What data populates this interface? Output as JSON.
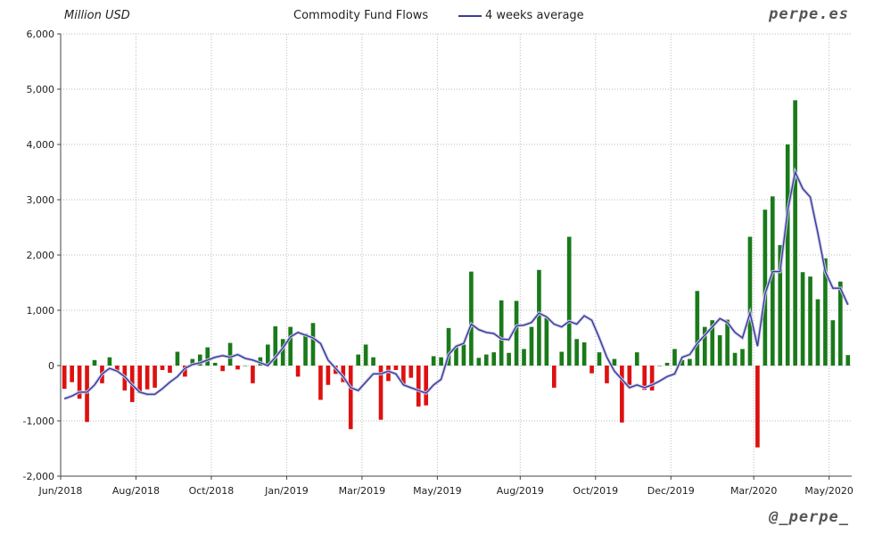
{
  "header": {
    "unit_label": "Million USD",
    "title": "Commodity Fund Flows",
    "legend_label": "4 weeks average",
    "brand": "perpe.es",
    "handle": "@_perpe_"
  },
  "colors": {
    "positive": "#1a7a1a",
    "negative": "#dd1111",
    "average_line": "#3a3a9a",
    "grid": "#bbbbbb"
  },
  "chart_data": {
    "type": "bar",
    "ylim": [
      -2000,
      6000
    ],
    "y_ticks": [
      -2000,
      -1000,
      0,
      1000,
      2000,
      3000,
      4000,
      5000,
      6000
    ],
    "y_tick_labels": [
      "-2,000",
      "-1,000",
      "0",
      "1,000",
      "2,000",
      "3,000",
      "4,000",
      "5,000",
      "6,000"
    ],
    "x_tick_labels": [
      "Jun/2018",
      "Aug/2018",
      "Oct/2018",
      "Jan/2019",
      "Mar/2019",
      "May/2019",
      "Aug/2019",
      "Oct/2019",
      "Dec/2019",
      "Mar/2020",
      "May/2020"
    ],
    "x_tick_week_index": [
      0,
      10,
      20,
      30,
      40,
      50,
      61,
      71,
      81,
      92,
      102
    ],
    "grid": true,
    "legend": "top",
    "series": [
      {
        "kind": "bars",
        "values": [
          -420,
          -300,
          -600,
          -1020,
          100,
          -320,
          150,
          -100,
          -450,
          -660,
          -500,
          -430,
          -400,
          -80,
          -130,
          250,
          -200,
          120,
          200,
          330,
          50,
          -100,
          410,
          -70,
          0,
          -320,
          150,
          380,
          710,
          480,
          700,
          -200,
          580,
          770,
          -620,
          -350,
          -150,
          -300,
          -1150,
          200,
          380,
          150,
          -980,
          -280,
          -80,
          -350,
          -220,
          -740,
          -720,
          170,
          150,
          680,
          330,
          380,
          1700,
          140,
          200,
          240,
          1180,
          230,
          1170,
          300,
          700,
          1730,
          860,
          -400,
          250,
          2330,
          480,
          420,
          -140,
          240,
          -320,
          120,
          -1030,
          -350,
          240,
          -440,
          -450,
          0,
          50,
          300,
          100,
          120,
          1350,
          700,
          820,
          550,
          830,
          230,
          300,
          2330,
          -1480,
          2820,
          3060,
          2180,
          4000,
          4800,
          1690,
          1610,
          1200,
          1940,
          820,
          1520,
          190
        ]
      },
      {
        "kind": "line",
        "name": "4 weeks average",
        "values": [
          -600,
          -550,
          -480,
          -480,
          -350,
          -150,
          -50,
          -100,
          -200,
          -350,
          -480,
          -520,
          -520,
          -420,
          -300,
          -200,
          -50,
          20,
          50,
          100,
          150,
          180,
          150,
          200,
          130,
          100,
          50,
          0,
          150,
          320,
          520,
          600,
          550,
          500,
          400,
          100,
          -50,
          -200,
          -400,
          -450,
          -300,
          -150,
          -150,
          -100,
          -150,
          -350,
          -400,
          -450,
          -500,
          -350,
          -250,
          200,
          350,
          400,
          750,
          650,
          600,
          580,
          480,
          470,
          720,
          730,
          780,
          950,
          880,
          750,
          700,
          800,
          750,
          900,
          820,
          500,
          150,
          -100,
          -250,
          -400,
          -350,
          -400,
          -350,
          -280,
          -200,
          -150,
          150,
          200,
          400,
          550,
          700,
          850,
          780,
          600,
          500,
          950,
          350,
          1300,
          1700,
          1700,
          2800,
          3500,
          3200,
          3050,
          2400,
          1700,
          1400,
          1400,
          1100
        ]
      }
    ]
  }
}
